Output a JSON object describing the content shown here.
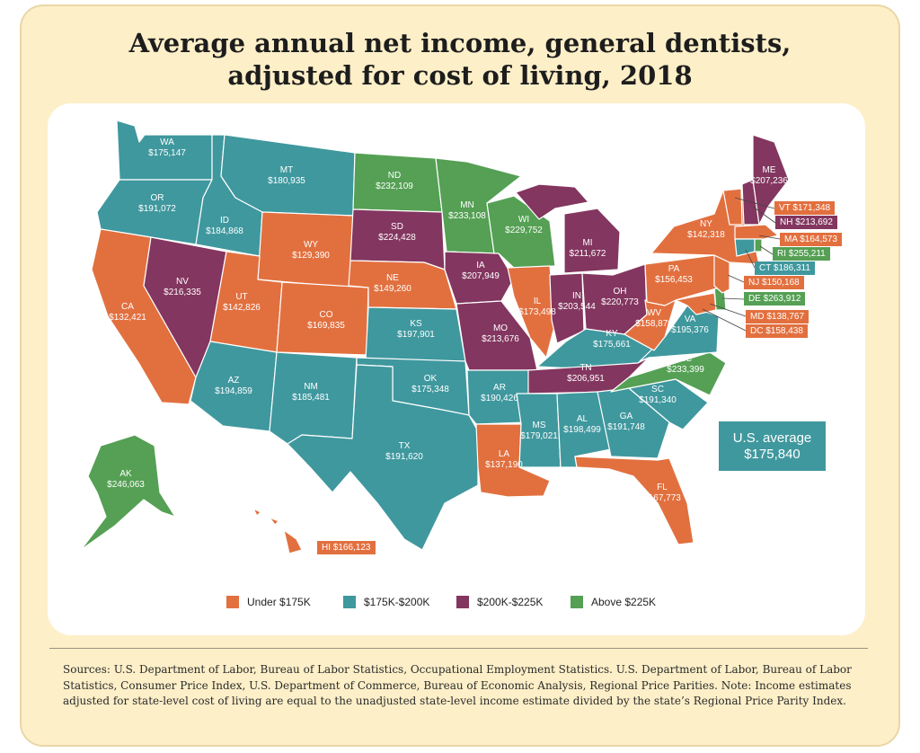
{
  "title_lines": [
    "Average annual net income, general dentists,",
    "adjusted for cost of living, 2018"
  ],
  "colors": {
    "under": "#e2703f",
    "mid": "#3f989e",
    "high": "#83365f",
    "above": "#55a054"
  },
  "states": {
    "WA": {
      "abbr": "WA",
      "value": "$175,147",
      "group": "mid"
    },
    "OR": {
      "abbr": "OR",
      "value": "$191,072",
      "group": "mid"
    },
    "CA": {
      "abbr": "CA",
      "value": "$132,421",
      "group": "under"
    },
    "ID": {
      "abbr": "ID",
      "value": "$184,868",
      "group": "mid"
    },
    "NV": {
      "abbr": "NV",
      "value": "$216,335",
      "group": "high"
    },
    "MT": {
      "abbr": "MT",
      "value": "$180,935",
      "group": "mid"
    },
    "WY": {
      "abbr": "WY",
      "value": "$129,390",
      "group": "under"
    },
    "UT": {
      "abbr": "UT",
      "value": "$142,826",
      "group": "under"
    },
    "AZ": {
      "abbr": "AZ",
      "value": "$194,859",
      "group": "mid"
    },
    "CO": {
      "abbr": "CO",
      "value": "$169,835",
      "group": "under"
    },
    "NM": {
      "abbr": "NM",
      "value": "$185,481",
      "group": "mid"
    },
    "ND": {
      "abbr": "ND",
      "value": "$232,109",
      "group": "above"
    },
    "SD": {
      "abbr": "SD",
      "value": "$224,428",
      "group": "high"
    },
    "NE": {
      "abbr": "NE",
      "value": "$149,260",
      "group": "under"
    },
    "KS": {
      "abbr": "KS",
      "value": "$197,901",
      "group": "mid"
    },
    "OK": {
      "abbr": "OK",
      "value": "$175,348",
      "group": "mid"
    },
    "TX": {
      "abbr": "TX",
      "value": "$191,620",
      "group": "mid"
    },
    "MN": {
      "abbr": "MN",
      "value": "$233,108",
      "group": "above"
    },
    "IA": {
      "abbr": "IA",
      "value": "$207,949",
      "group": "high"
    },
    "MO": {
      "abbr": "MO",
      "value": "$213,676",
      "group": "high"
    },
    "AR": {
      "abbr": "AR",
      "value": "$190,426",
      "group": "mid"
    },
    "LA": {
      "abbr": "LA",
      "value": "$137,190",
      "group": "under"
    },
    "WI": {
      "abbr": "WI",
      "value": "$229,752",
      "group": "above"
    },
    "IL": {
      "abbr": "IL",
      "value": "$173,498",
      "group": "under"
    },
    "MI": {
      "abbr": "MI",
      "value": "$211,672",
      "group": "high"
    },
    "IN": {
      "abbr": "IN",
      "value": "$203,544",
      "group": "high"
    },
    "OH": {
      "abbr": "OH",
      "value": "$220,773",
      "group": "high"
    },
    "KY": {
      "abbr": "KY",
      "value": "$175,661",
      "group": "mid"
    },
    "TN": {
      "abbr": "TN",
      "value": "$206,951",
      "group": "high"
    },
    "MS": {
      "abbr": "MS",
      "value": "$179,021",
      "group": "mid"
    },
    "AL": {
      "abbr": "AL",
      "value": "$198,499",
      "group": "mid"
    },
    "GA": {
      "abbr": "GA",
      "value": "$191,748",
      "group": "mid"
    },
    "FL": {
      "abbr": "FL",
      "value": "$167,773",
      "group": "under"
    },
    "SC": {
      "abbr": "SC",
      "value": "$191,340",
      "group": "mid"
    },
    "NC": {
      "abbr": "NC",
      "value": "$233,399",
      "group": "above"
    },
    "VA": {
      "abbr": "VA",
      "value": "$195,376",
      "group": "mid"
    },
    "WV": {
      "abbr": "WV",
      "value": "$158,870",
      "group": "under"
    },
    "PA": {
      "abbr": "PA",
      "value": "$156,453",
      "group": "under"
    },
    "NY": {
      "abbr": "NY",
      "value": "$142,318",
      "group": "under"
    },
    "ME": {
      "abbr": "ME",
      "value": "$207,236",
      "group": "high"
    },
    "AK": {
      "abbr": "AK",
      "value": "$246,063",
      "group": "above"
    }
  },
  "callouts": {
    "VT": {
      "text": "VT $171,348",
      "group": "under"
    },
    "NH": {
      "text": "NH $213,692",
      "group": "high"
    },
    "MA": {
      "text": "MA $164,573",
      "group": "under"
    },
    "RI": {
      "text": "RI $255,211",
      "group": "above"
    },
    "CT": {
      "text": "CT $186,311",
      "group": "mid"
    },
    "NJ": {
      "text": "NJ $150,168",
      "group": "under"
    },
    "DE": {
      "text": "DE $263,912",
      "group": "above"
    },
    "MD": {
      "text": "MD $138,767",
      "group": "under"
    },
    "DC": {
      "text": "DC $158,438",
      "group": "under"
    },
    "HI": {
      "text": "HI $166,123",
      "group": "under"
    }
  },
  "us_average": {
    "label": "U.S. average",
    "value": "$175,840"
  },
  "legend": [
    {
      "label": "Under $175K",
      "group": "under"
    },
    {
      "label": "$175K-$200K",
      "group": "mid"
    },
    {
      "label": "$200K-$225K",
      "group": "high"
    },
    {
      "label": "Above $225K",
      "group": "above"
    }
  ],
  "sources": "Sources: U.S. Department of Labor, Bureau of Labor Statistics, Occupational Employment Statistics. U.S. Department of Labor, Bureau of Labor Statistics, Consumer Price Index, U.S. Department of Commerce, Bureau of Economic Analysis, Regional Price Parities. Note: Income estimates adjusted for state-level cost of living are equal to the unadjusted state-level income estimate divided by the state’s Regional Price Parity Index."
}
